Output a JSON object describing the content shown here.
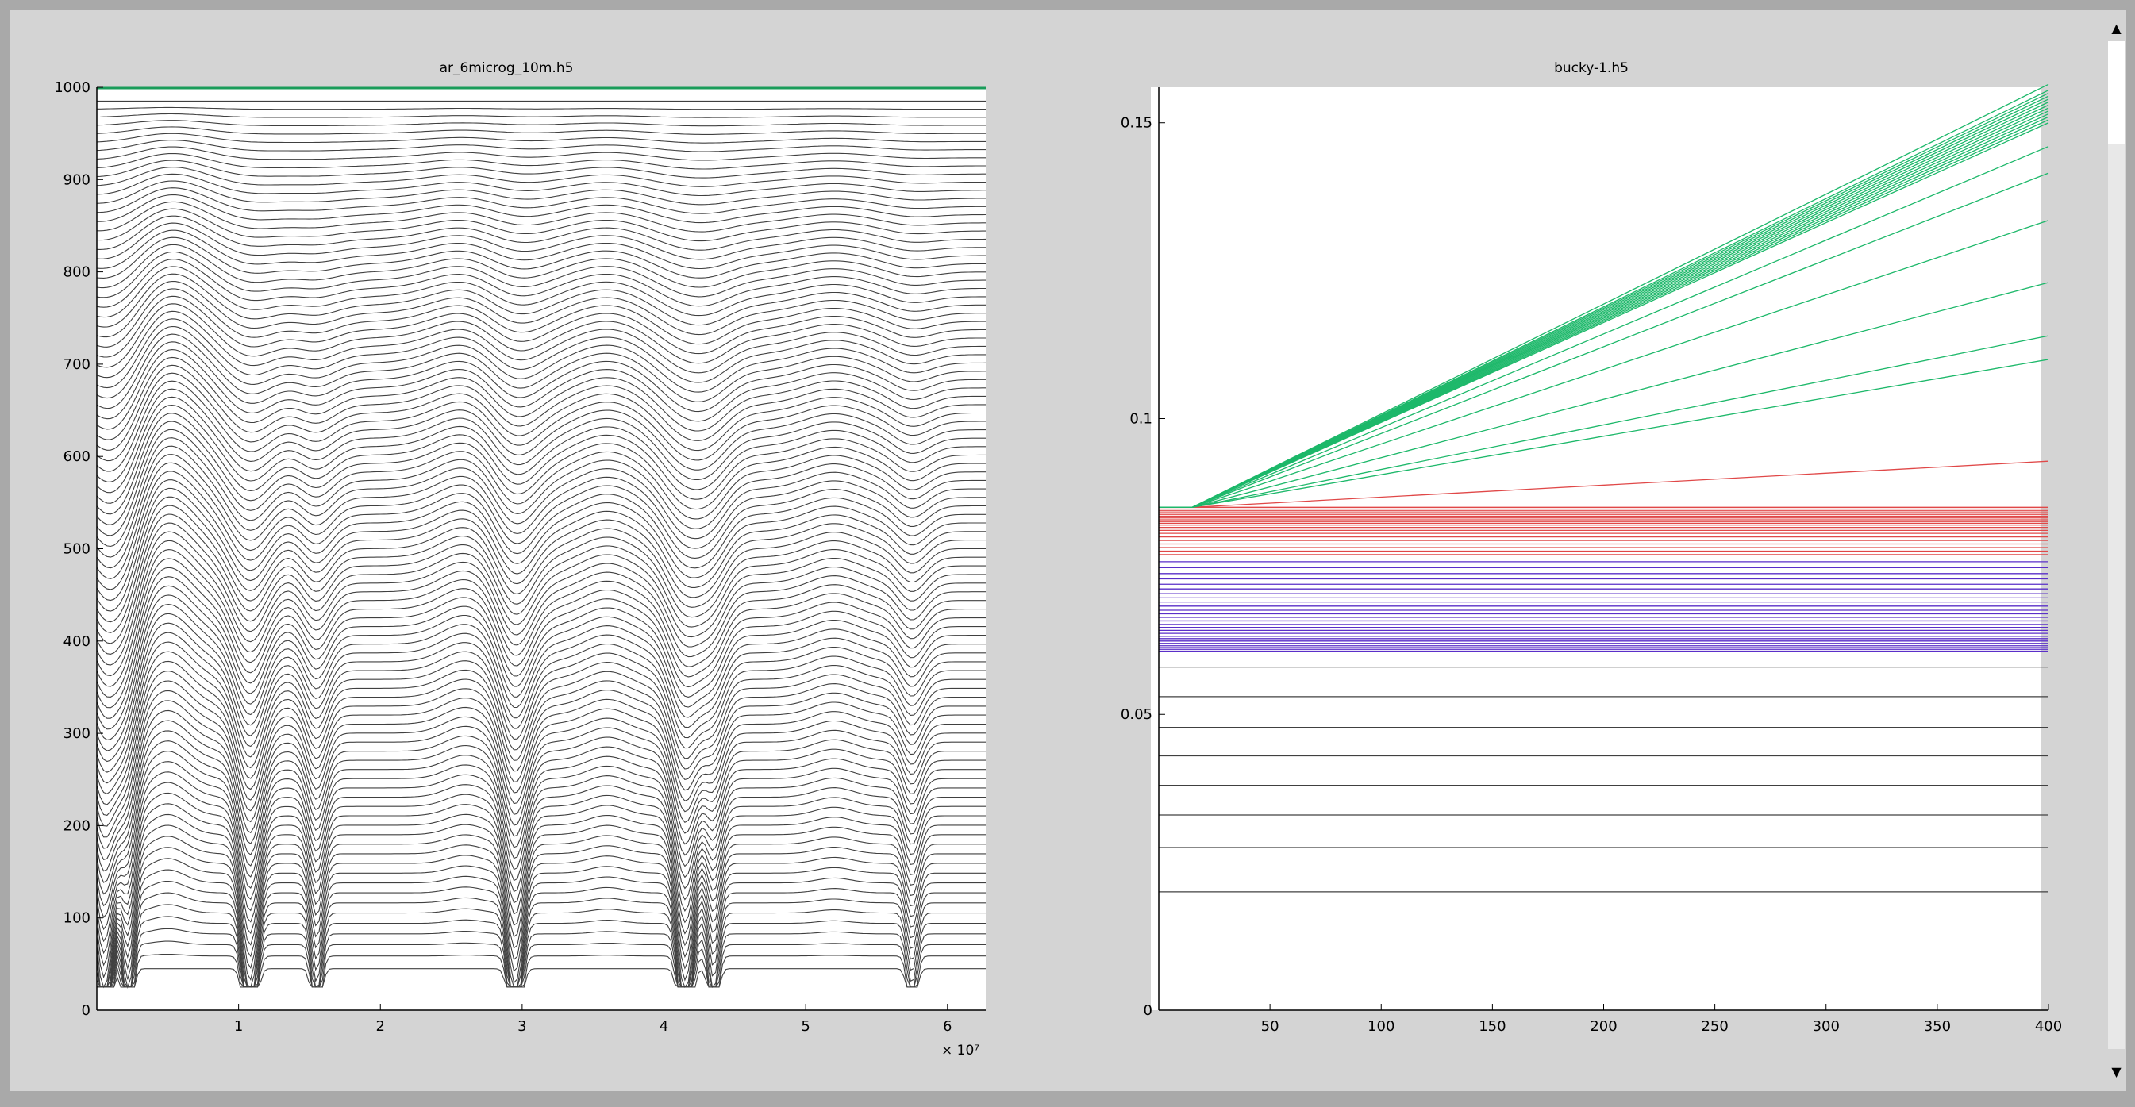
{
  "window": {
    "scrollbar": {
      "up_icon": "triangle-up-icon",
      "down_icon": "triangle-down-icon",
      "up_glyph": "▲",
      "down_glyph": "▼"
    }
  },
  "chart_data": [
    {
      "type": "line",
      "title": "ar_6microg_10m.h5",
      "xlabel": "",
      "ylabel": "",
      "x_exponent_label": "× 10⁷",
      "xlim": [
        0,
        6.27
      ],
      "ylim": [
        0,
        1000
      ],
      "xticks": [
        1,
        2,
        3,
        4,
        5,
        6
      ],
      "xtick_labels": [
        "1",
        "2",
        "3",
        "4",
        "5",
        "6"
      ],
      "yticks": [
        0,
        100,
        200,
        300,
        400,
        500,
        600,
        700,
        800,
        900,
        1000
      ],
      "ytick_labels": [
        "0",
        "100",
        "200",
        "300",
        "400",
        "500",
        "600",
        "700",
        "800",
        "900",
        "1000"
      ],
      "grid": false,
      "series_count": 100,
      "series_color": "#404040",
      "top_series_color": "#1a9c5a",
      "top_series_value": 1000,
      "base_offset_range": [
        45,
        985
      ],
      "dips": [
        {
          "x": 0.05,
          "depth": 210
        },
        {
          "x": 0.22,
          "depth": 120
        },
        {
          "x": 1.08,
          "depth": 150
        },
        {
          "x": 1.55,
          "depth": 95
        },
        {
          "x": 2.95,
          "depth": 140
        },
        {
          "x": 4.15,
          "depth": 150
        },
        {
          "x": 4.35,
          "depth": 90
        },
        {
          "x": 5.75,
          "depth": 70
        }
      ],
      "bumps": [
        {
          "x": 0.5,
          "height": 120
        },
        {
          "x": 2.6,
          "height": 60
        },
        {
          "x": 3.6,
          "height": 55
        },
        {
          "x": 5.2,
          "height": 45
        }
      ]
    },
    {
      "type": "line",
      "title": "bucky-1.h5",
      "xlabel": "",
      "ylabel": "",
      "xlim": [
        0,
        400
      ],
      "ylim": [
        0,
        0.156
      ],
      "xticks": [
        50,
        100,
        150,
        200,
        250,
        300,
        350,
        400
      ],
      "xtick_labels": [
        "50",
        "100",
        "150",
        "200",
        "250",
        "300",
        "350",
        "400"
      ],
      "yticks": [
        0,
        0.05,
        0.1,
        0.15
      ],
      "ytick_labels": [
        "0",
        "0.05",
        "0.1",
        "0.15"
      ],
      "grid": false,
      "knee_x": 15,
      "knee_y": 0.085,
      "green_series": {
        "color": "#1db86a",
        "end_values": [
          0.1565,
          0.1555,
          0.155,
          0.1545,
          0.154,
          0.1535,
          0.153,
          0.1525,
          0.152,
          0.1515,
          0.151,
          0.1505,
          0.15,
          0.146,
          0.1415,
          0.1335,
          0.123,
          0.114,
          0.11
        ]
      },
      "red_series": {
        "color": "#e04848",
        "rising_end": 0.0928,
        "flat_values": [
          0.085,
          0.0847,
          0.0844,
          0.0841,
          0.0838,
          0.0835,
          0.0832,
          0.0829,
          0.0826,
          0.0823,
          0.082,
          0.0816,
          0.0811,
          0.0806,
          0.08,
          0.0794,
          0.0788,
          0.0782,
          0.0776,
          0.077
        ]
      },
      "purple_series": {
        "color": "#5a2fc8",
        "flat_values": [
          0.0758,
          0.0748,
          0.0738,
          0.0729,
          0.072,
          0.0712,
          0.0704,
          0.0697,
          0.069,
          0.0683,
          0.0676,
          0.067,
          0.0664,
          0.0658,
          0.0652,
          0.0647,
          0.0642,
          0.0637,
          0.0632,
          0.0628,
          0.0624,
          0.062,
          0.0616,
          0.0613,
          0.061,
          0.0607
        ]
      },
      "gray_series": {
        "color": "#404040",
        "flat_values": [
          0.058,
          0.053,
          0.0478,
          0.043,
          0.038,
          0.033,
          0.0275,
          0.02
        ]
      }
    }
  ]
}
